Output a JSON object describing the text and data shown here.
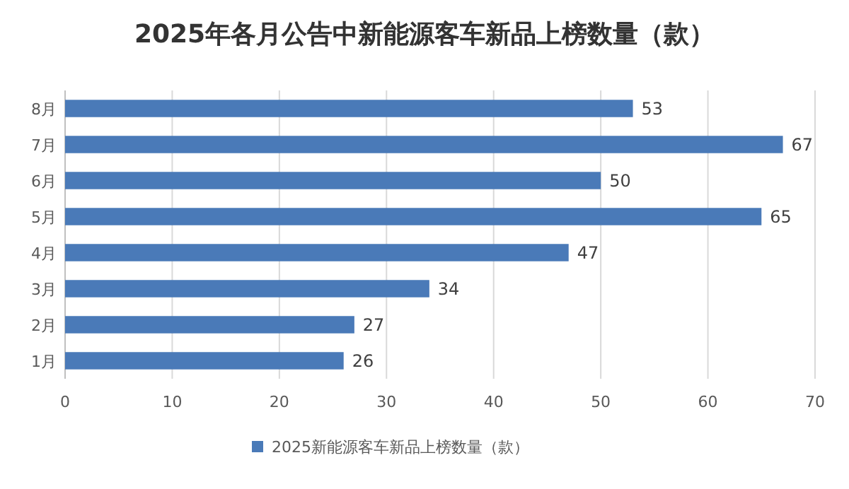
{
  "chart_data": {
    "type": "bar",
    "orientation": "horizontal",
    "title": "2025年各月公告中新能源客车新品上榜数量（款）",
    "categories": [
      "8月",
      "7月",
      "6月",
      "5月",
      "4月",
      "3月",
      "2月",
      "1月"
    ],
    "series": [
      {
        "name": "2025新能源客车新品上榜数量（款）",
        "color": "#4a7ab8",
        "values": [
          53,
          67,
          50,
          65,
          47,
          34,
          27,
          26
        ]
      }
    ],
    "xlim": [
      0,
      70
    ],
    "xticks": [
      0,
      10,
      20,
      30,
      40,
      50,
      60,
      70
    ],
    "grid": "x",
    "legend": "bottom",
    "data_labels": true
  }
}
